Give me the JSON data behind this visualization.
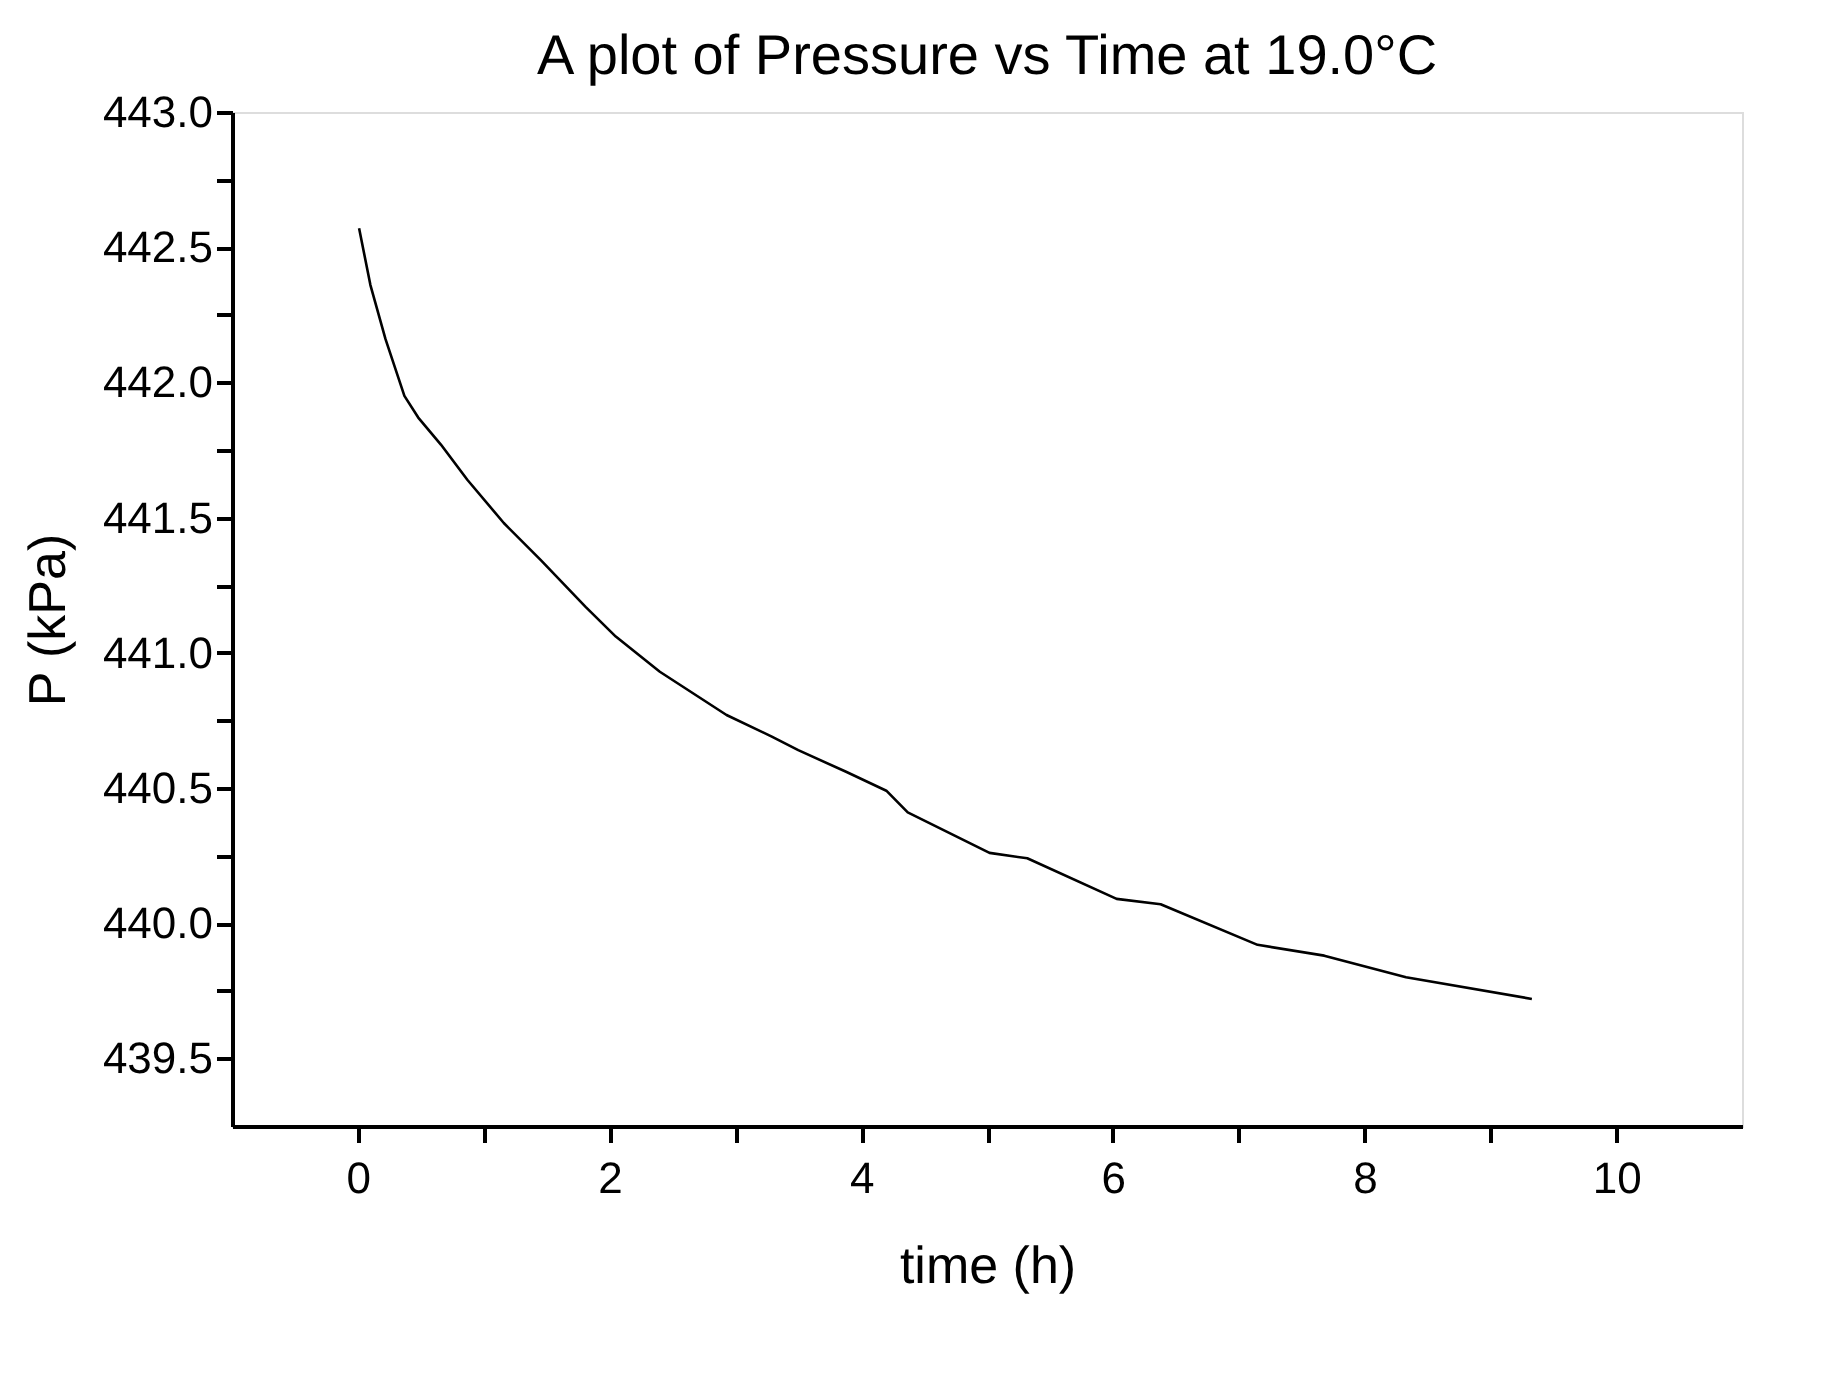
{
  "chart_data": {
    "type": "line",
    "title": "A plot of Pressure vs Time at 19.0°C",
    "xlabel": "time (h)",
    "ylabel": "P (kPa)",
    "series": [
      {
        "color": "#000000",
        "x": [
          0.01,
          0.1,
          0.22,
          0.37,
          0.48,
          0.66,
          0.87,
          1.16,
          1.46,
          1.81,
          2.05,
          2.4,
          2.93,
          3.29,
          3.5,
          3.88,
          4.2,
          4.37,
          5.02,
          5.32,
          6.03,
          6.38,
          7.15,
          7.68,
          8.33,
          9.33
        ],
        "values": [
          442.57,
          442.36,
          442.16,
          441.95,
          441.87,
          441.77,
          441.64,
          441.48,
          441.34,
          441.17,
          441.06,
          440.93,
          440.77,
          440.69,
          440.64,
          440.56,
          440.49,
          440.41,
          440.26,
          440.24,
          440.09,
          440.07,
          439.92,
          439.88,
          439.8,
          439.72
        ]
      }
    ],
    "xlim": [
      -1,
      11
    ],
    "ylim": [
      439.25,
      443.0
    ],
    "xticks": [
      0,
      {
        "value": 1,
        "label": null
      },
      2,
      {
        "value": 3,
        "label": null
      },
      4,
      {
        "value": 5,
        "label": null
      },
      6,
      {
        "value": 7,
        "label": null
      },
      8,
      {
        "value": 9,
        "label": null
      },
      10
    ],
    "yticks": [
      {
        "value": 439.5,
        "label": "439.5"
      },
      {
        "value": 439.75,
        "label": null
      },
      {
        "value": 440,
        "label": "440.0"
      },
      {
        "value": 440.25,
        "label": null
      },
      {
        "value": 440.5,
        "label": "440.5"
      },
      {
        "value": 440.75,
        "label": null
      },
      {
        "value": 441,
        "label": "441.0"
      },
      {
        "value": 441.25,
        "label": null
      },
      {
        "value": 441.5,
        "label": "441.5"
      },
      {
        "value": 441.75,
        "label": null
      },
      {
        "value": 442,
        "label": "442.0"
      },
      {
        "value": 442.25,
        "label": null
      },
      {
        "value": 442.5,
        "label": "442.5"
      },
      {
        "value": 442.75,
        "label": null
      },
      {
        "value": 443,
        "label": "443.0"
      }
    ],
    "grid": false,
    "legend": false,
    "marker": "none",
    "line_style": "solid"
  }
}
